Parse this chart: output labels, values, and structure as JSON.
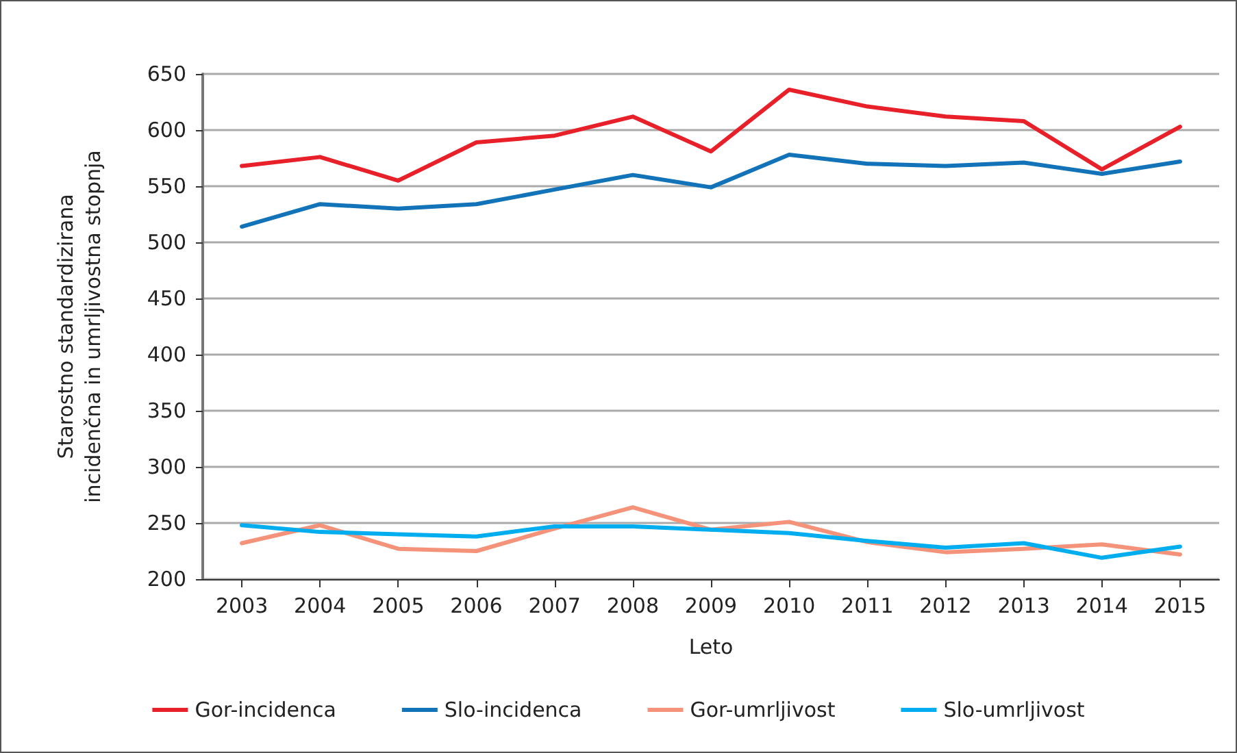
{
  "chart_data": {
    "type": "line",
    "xlabel": "Leto",
    "ylabel": "Starostno standardizirana\nincidenčna in umrljivostna stopnja",
    "categories": [
      "2003",
      "2004",
      "2005",
      "2006",
      "2007",
      "2008",
      "2009",
      "2010",
      "2011",
      "2012",
      "2013",
      "2014",
      "2015"
    ],
    "series": [
      {
        "name": "Gor-incidenca",
        "color": "#e8202a",
        "values": [
          568,
          576,
          555,
          589,
          595,
          612,
          581,
          636,
          621,
          612,
          608,
          565,
          603
        ]
      },
      {
        "name": "Slo-incidenca",
        "color": "#1273b8",
        "values": [
          514,
          534,
          530,
          534,
          547,
          560,
          549,
          578,
          570,
          568,
          571,
          561,
          572
        ]
      },
      {
        "name": "Gor-umrljivost",
        "color": "#f4937a",
        "values": [
          232,
          248,
          227,
          225,
          245,
          264,
          244,
          251,
          233,
          224,
          227,
          231,
          222
        ]
      },
      {
        "name": "Slo-umrljivost",
        "color": "#00aeef",
        "values": [
          248,
          242,
          240,
          238,
          247,
          247,
          244,
          241,
          234,
          228,
          232,
          219,
          229
        ]
      }
    ],
    "ylim": [
      200,
      650
    ],
    "yticks": [
      200,
      250,
      300,
      350,
      400,
      450,
      500,
      550,
      600,
      650
    ],
    "grid": "y",
    "legend": "bottom",
    "marker": "none",
    "line_style": "solid"
  }
}
